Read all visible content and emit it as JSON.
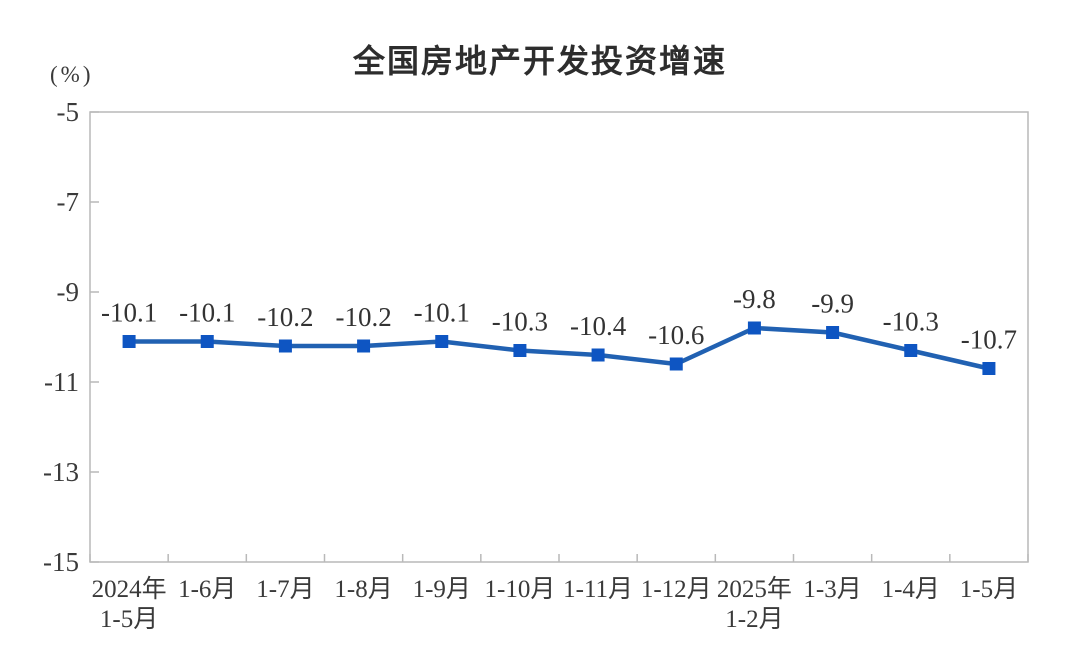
{
  "chart_data": {
    "type": "line",
    "title": "全国房地产开发投资增速",
    "unit_label": "(%)",
    "categories": [
      "2024年\n1-5月",
      "1-6月",
      "1-7月",
      "1-8月",
      "1-9月",
      "1-10月",
      "1-11月",
      "1-12月",
      "2025年\n1-2月",
      "1-3月",
      "1-4月",
      "1-5月"
    ],
    "values": [
      -10.1,
      -10.1,
      -10.2,
      -10.2,
      -10.1,
      -10.3,
      -10.4,
      -10.6,
      -9.8,
      -9.9,
      -10.3,
      -10.7
    ],
    "data_labels": [
      "-10.1",
      "-10.1",
      "-10.2",
      "-10.2",
      "-10.1",
      "-10.3",
      "-10.4",
      "-10.6",
      "-9.8",
      "-9.9",
      "-10.3",
      "-10.7"
    ],
    "ylim": [
      -15,
      -5
    ],
    "ytick_labels": [
      "-5",
      "-7",
      "-9",
      "-11",
      "-13",
      "-15"
    ],
    "ytick_values": [
      -5,
      -7,
      -9,
      -11,
      -13,
      -15
    ],
    "grid": false,
    "legend_position": "none",
    "colors": {
      "line": "#2161b2",
      "marker": "#0e55c2",
      "axis": "#b9b9b9",
      "tick_text": "#3a3a3a",
      "data_label_text": "#333333",
      "title_text": "#2d2d2d"
    }
  }
}
